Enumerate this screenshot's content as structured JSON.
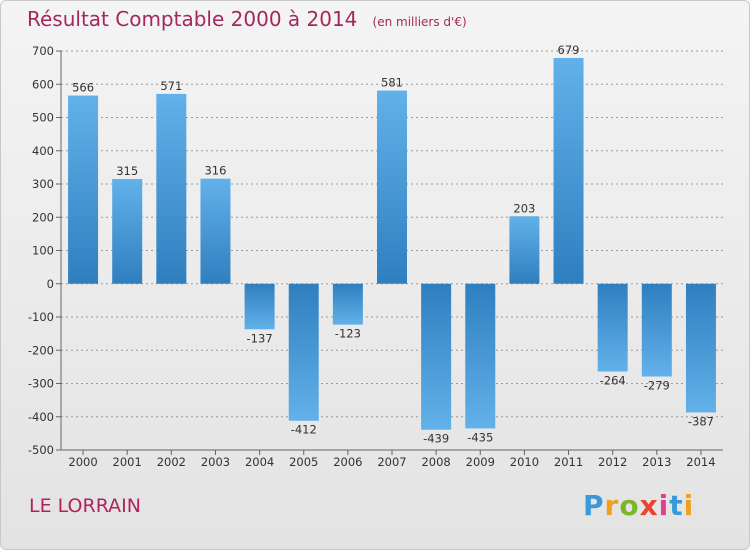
{
  "title": "Résultat Comptable 2000 à 2014",
  "subtitle": "(en milliers d'€)",
  "commune": "LE LORRAIN",
  "logo": {
    "letters": [
      "P",
      "r",
      "o",
      "x",
      "i",
      "t",
      "i"
    ],
    "colors": [
      "#3a9ad9",
      "#f0a020",
      "#7ab62a",
      "#e8452c",
      "#e43f8c",
      "#3a9ad9",
      "#f0a020"
    ]
  },
  "colors": {
    "bar_light": "#62b1ea",
    "bar_dark": "#2f7fbf",
    "title": "#a4285b",
    "grid": "#9a9a9a"
  },
  "chart_data": {
    "type": "bar",
    "title": "Résultat Comptable 2000 à 2014",
    "subtitle": "(en milliers d'€)",
    "categories": [
      "2000",
      "2001",
      "2002",
      "2003",
      "2004",
      "2005",
      "2006",
      "2007",
      "2008",
      "2009",
      "2010",
      "2011",
      "2012",
      "2013",
      "2014"
    ],
    "values": [
      566,
      315,
      571,
      316,
      -137,
      -412,
      -123,
      581,
      -439,
      -435,
      203,
      679,
      -264,
      -279,
      -387
    ],
    "data_labels": [
      "566",
      "315",
      "571",
      "316",
      "-137",
      "-412",
      "-123",
      "581",
      "-439",
      "-435",
      "203",
      "679",
      "-264",
      "-279",
      "-387"
    ],
    "y_ticks": [
      700,
      600,
      500,
      400,
      300,
      200,
      100,
      0,
      -100,
      -200,
      -300,
      -400,
      -500
    ],
    "ylim": [
      -500,
      700
    ],
    "grid": true
  }
}
